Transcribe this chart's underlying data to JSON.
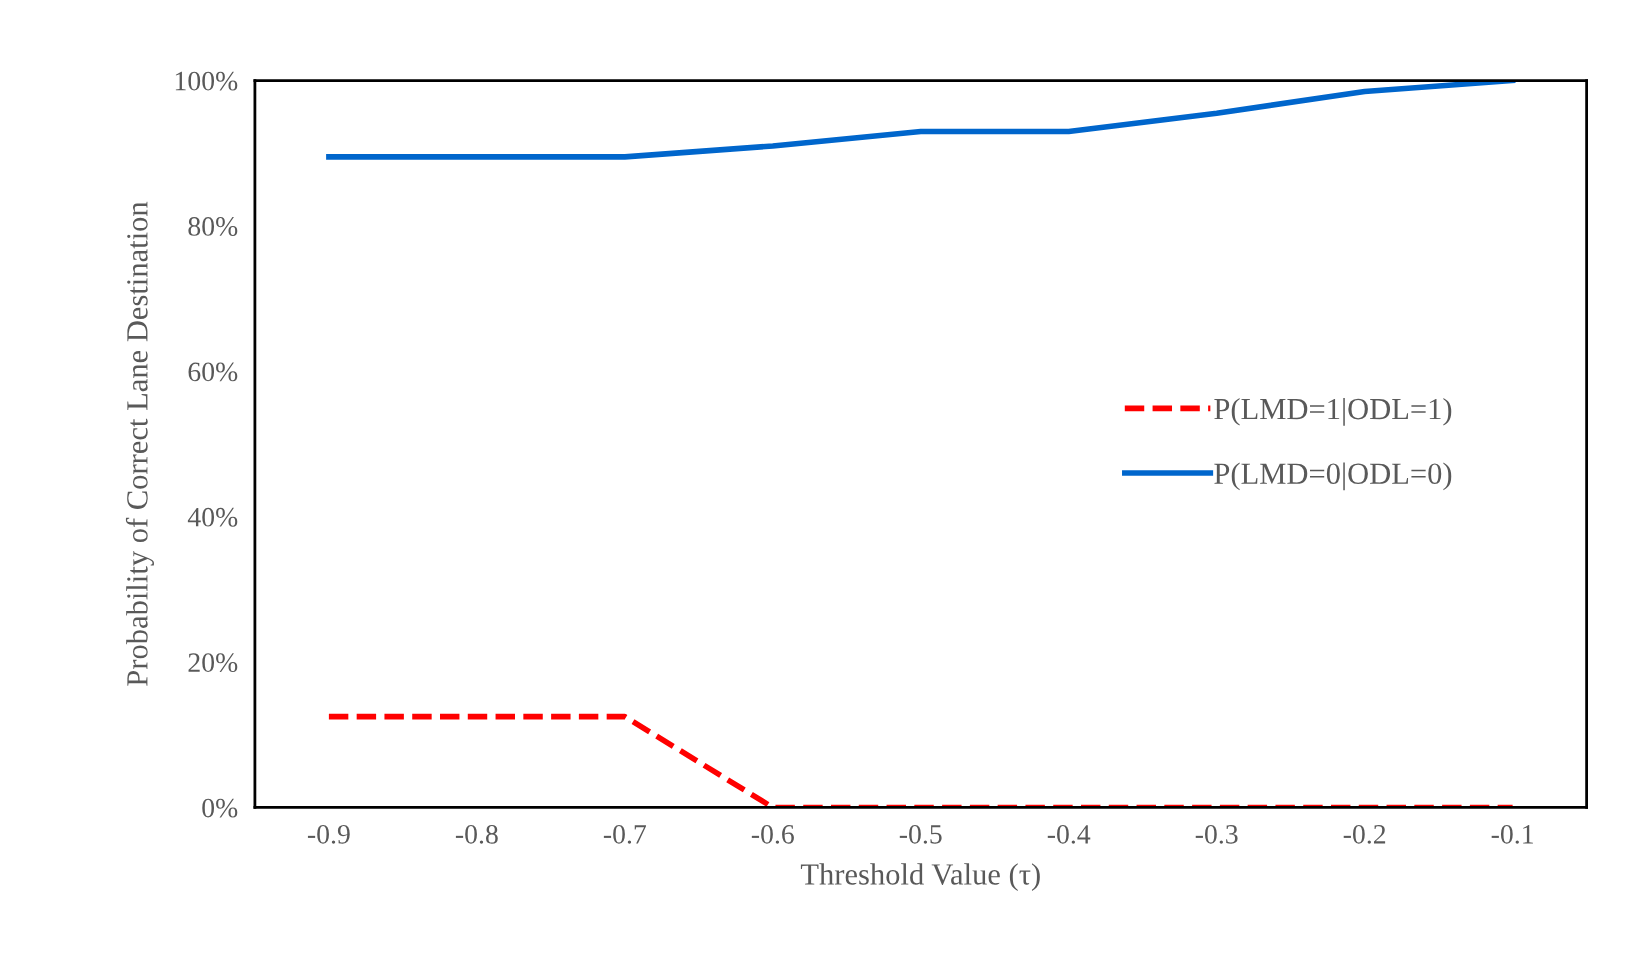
{
  "chart_data": {
    "type": "line",
    "xlabel": "Threshold Value (τ)",
    "ylabel": "Probability of Correct Lane Destination",
    "categories": [
      "-0.9",
      "-0.8",
      "-0.7",
      "-0.6",
      "-0.5",
      "-0.4",
      "-0.3",
      "-0.2",
      "-0.1"
    ],
    "series": [
      {
        "name": "P(LMD=1|ODL=1)",
        "color": "#ff0000",
        "line_style": "dashed",
        "values": [
          12.5,
          12.5,
          12.5,
          0,
          0,
          0,
          0,
          0,
          0
        ]
      },
      {
        "name": "P(LMD=0|ODL=0)",
        "color": "#0066cc",
        "line_style": "solid",
        "values": [
          89.5,
          89.5,
          89.5,
          91,
          93,
          93,
          95.5,
          98.5,
          100
        ]
      }
    ],
    "ylim": [
      0,
      100
    ],
    "yticks": [
      {
        "value": 0,
        "label": "0%"
      },
      {
        "value": 20,
        "label": "20%"
      },
      {
        "value": 40,
        "label": "40%"
      },
      {
        "value": 60,
        "label": "60%"
      },
      {
        "value": 80,
        "label": "80%"
      },
      {
        "value": 100,
        "label": "100%"
      }
    ],
    "legend": "center right",
    "grid": false
  }
}
